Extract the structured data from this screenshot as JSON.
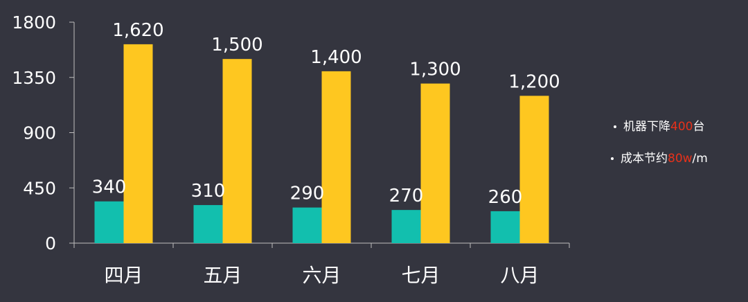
{
  "chart_data": {
    "type": "bar",
    "categories": [
      "四月",
      "五月",
      "六月",
      "七月",
      "八月"
    ],
    "series": [
      {
        "values": [
          340,
          310,
          290,
          270,
          260
        ],
        "color": "#12bfae"
      },
      {
        "values": [
          1620,
          1500,
          1400,
          1300,
          1200
        ],
        "color": "#fec720"
      }
    ],
    "data_labels": [
      [
        "340",
        "310",
        "290",
        "270",
        "260"
      ],
      [
        "1,620",
        "1,500",
        "1,400",
        "1,300",
        "1,200"
      ]
    ],
    "yticks": [
      0,
      450,
      900,
      1350,
      1800
    ],
    "ylim": [
      0,
      1800
    ],
    "grid": false
  },
  "notes": [
    {
      "prefix": "机器下降",
      "highlight": "400",
      "suffix": "台"
    },
    {
      "prefix": "成本节约",
      "highlight": "80w",
      "suffix": "/m"
    }
  ],
  "colors": {
    "background": "#34353f",
    "highlight": "#e8311a",
    "axis": "#bfbfbf"
  }
}
